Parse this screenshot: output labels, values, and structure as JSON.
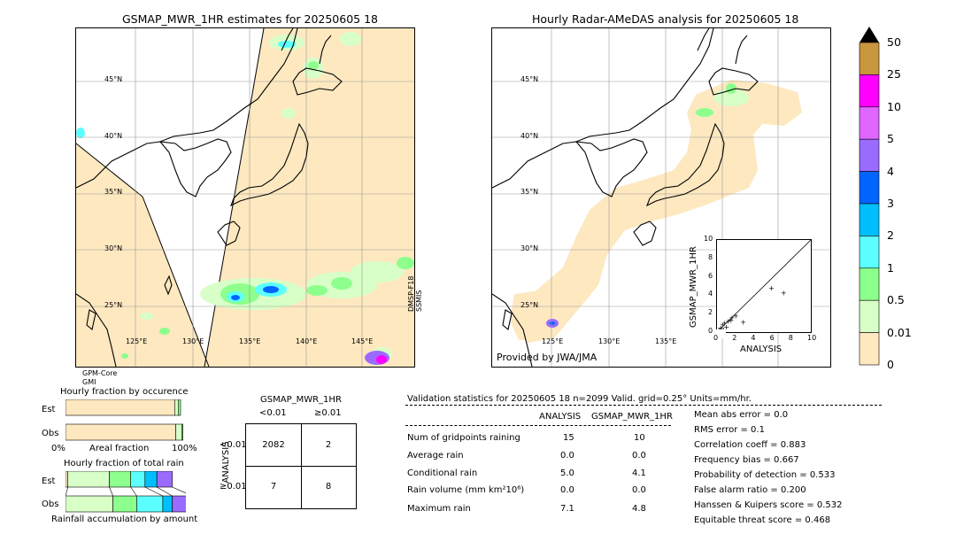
{
  "left_map": {
    "title": "GSMAP_MWR_1HR estimates for 20250605 18",
    "lat_labels": [
      "45°N",
      "40°N",
      "35°N",
      "30°N",
      "25°N"
    ],
    "lon_labels": [
      "125°E",
      "130°E",
      "135°E",
      "140°E",
      "145°E"
    ],
    "sensor_right": "DMSP-F18\nSSMIS",
    "sensor_bottom_1": "GPM-Core",
    "sensor_bottom_2": "GMI"
  },
  "right_map": {
    "title": "Hourly Radar-AMeDAS analysis for 20250605 18",
    "lat_labels": [
      "45°N",
      "40°N",
      "35°N",
      "30°N",
      "25°N"
    ],
    "lon_labels": [
      "125°E",
      "130°E",
      "135°E"
    ],
    "provider": "Provided by JWA/JMA"
  },
  "colorbar": {
    "ticks": [
      "50",
      "25",
      "10",
      "5",
      "4",
      "3",
      "2",
      "1",
      "0.5",
      "0.01",
      "0"
    ],
    "colors": [
      "#c8963c",
      "#ff00ff",
      "#e066ff",
      "#9b6bff",
      "#0064ff",
      "#00bfff",
      "#5cffff",
      "#8cff8c",
      "#d8ffc8",
      "#fde8c0"
    ]
  },
  "chart_data": [
    {
      "type": "scatter",
      "xlabel": "ANALYSIS",
      "ylabel": "GSMAP_MWR_1HR",
      "xlim": [
        0,
        10
      ],
      "ylim": [
        0,
        10
      ],
      "x_ticks": [
        "0",
        "2",
        "4",
        "6",
        "8",
        "10"
      ],
      "y_ticks": [
        "0",
        "2",
        "4",
        "6",
        "8",
        "10"
      ],
      "points": [
        [
          0.1,
          0.1
        ],
        [
          0.2,
          0.3
        ],
        [
          0.3,
          0.1
        ],
        [
          0.4,
          0.5
        ],
        [
          0.5,
          0.2
        ],
        [
          0.6,
          0.8
        ],
        [
          0.7,
          0.3
        ],
        [
          0.8,
          1.0
        ],
        [
          1.0,
          0.6
        ],
        [
          1.2,
          1.2
        ],
        [
          1.5,
          1.3
        ],
        [
          1.6,
          1.6
        ],
        [
          2.0,
          1.8
        ],
        [
          2.8,
          1.1
        ],
        [
          5.8,
          4.8
        ],
        [
          7.1,
          4.3
        ]
      ]
    },
    {
      "type": "bar",
      "title": "Hourly fraction by occurence",
      "categories": [
        "Est",
        "Obs"
      ],
      "xlabel": "Areal fraction",
      "x_ticks": [
        "0%",
        "100%"
      ],
      "series": [
        {
          "values": [
            0.92,
            0.93
          ],
          "color": "#fde8c0"
        },
        {
          "values": [
            0.03,
            0.05
          ],
          "color": "#d8ffc8"
        },
        {
          "values": [
            0.02,
            0.01
          ],
          "color": "#8cff8c"
        }
      ]
    },
    {
      "type": "bar",
      "title": "Hourly fraction of total rain",
      "categories": [
        "Est",
        "Obs"
      ],
      "xlabel": "Rainfall accumulation by amount",
      "series": [
        {
          "values": [
            0.02,
            0.0
          ],
          "color": "#fde8c0"
        },
        {
          "values": [
            0.35,
            0.4
          ],
          "color": "#d8ffc8"
        },
        {
          "values": [
            0.18,
            0.2
          ],
          "color": "#8cff8c"
        },
        {
          "values": [
            0.12,
            0.22
          ],
          "color": "#5cffff"
        },
        {
          "values": [
            0.1,
            0.08
          ],
          "color": "#00bfff"
        },
        {
          "values": [
            0.13,
            0.17
          ],
          "color": "#9b6bff"
        }
      ]
    }
  ],
  "contingency": {
    "title": "GSMAP_MWR_1HR",
    "col_lt": "<0.01",
    "col_ge": "≥0.01",
    "row_lt": "<0.01",
    "row_ge": "≥0.01",
    "row_axis": "ANALYSIS",
    "c11": "2082",
    "c12": "2",
    "c21": "7",
    "c22": "8"
  },
  "validation": {
    "header": "Validation statistics for 20250605 18  n=2099 Valid. grid=0.25° Units=mm/hr.",
    "col_analysis": "ANALYSIS",
    "col_gsmap": "GSMAP_MWR_1HR",
    "rows": [
      {
        "label": "Num of gridpoints raining",
        "analysis": "15",
        "gsmap": "10"
      },
      {
        "label": "Average rain",
        "analysis": "0.0",
        "gsmap": "0.0"
      },
      {
        "label": "Conditional rain",
        "analysis": "5.0",
        "gsmap": "4.1"
      },
      {
        "label": "Rain volume (mm km²10⁶)",
        "analysis": "0.0",
        "gsmap": "0.0"
      },
      {
        "label": "Maximum rain",
        "analysis": "7.1",
        "gsmap": "4.8"
      }
    ],
    "scores": [
      "Mean abs error =    0.0",
      "RMS error =    0.1",
      "Correlation coeff =  0.883",
      "Frequency bias =  0.667",
      "Probability of detection =  0.533",
      "False alarm ratio =  0.200",
      "Hanssen & Kuipers score =  0.532",
      "Equitable threat score =  0.468"
    ]
  }
}
